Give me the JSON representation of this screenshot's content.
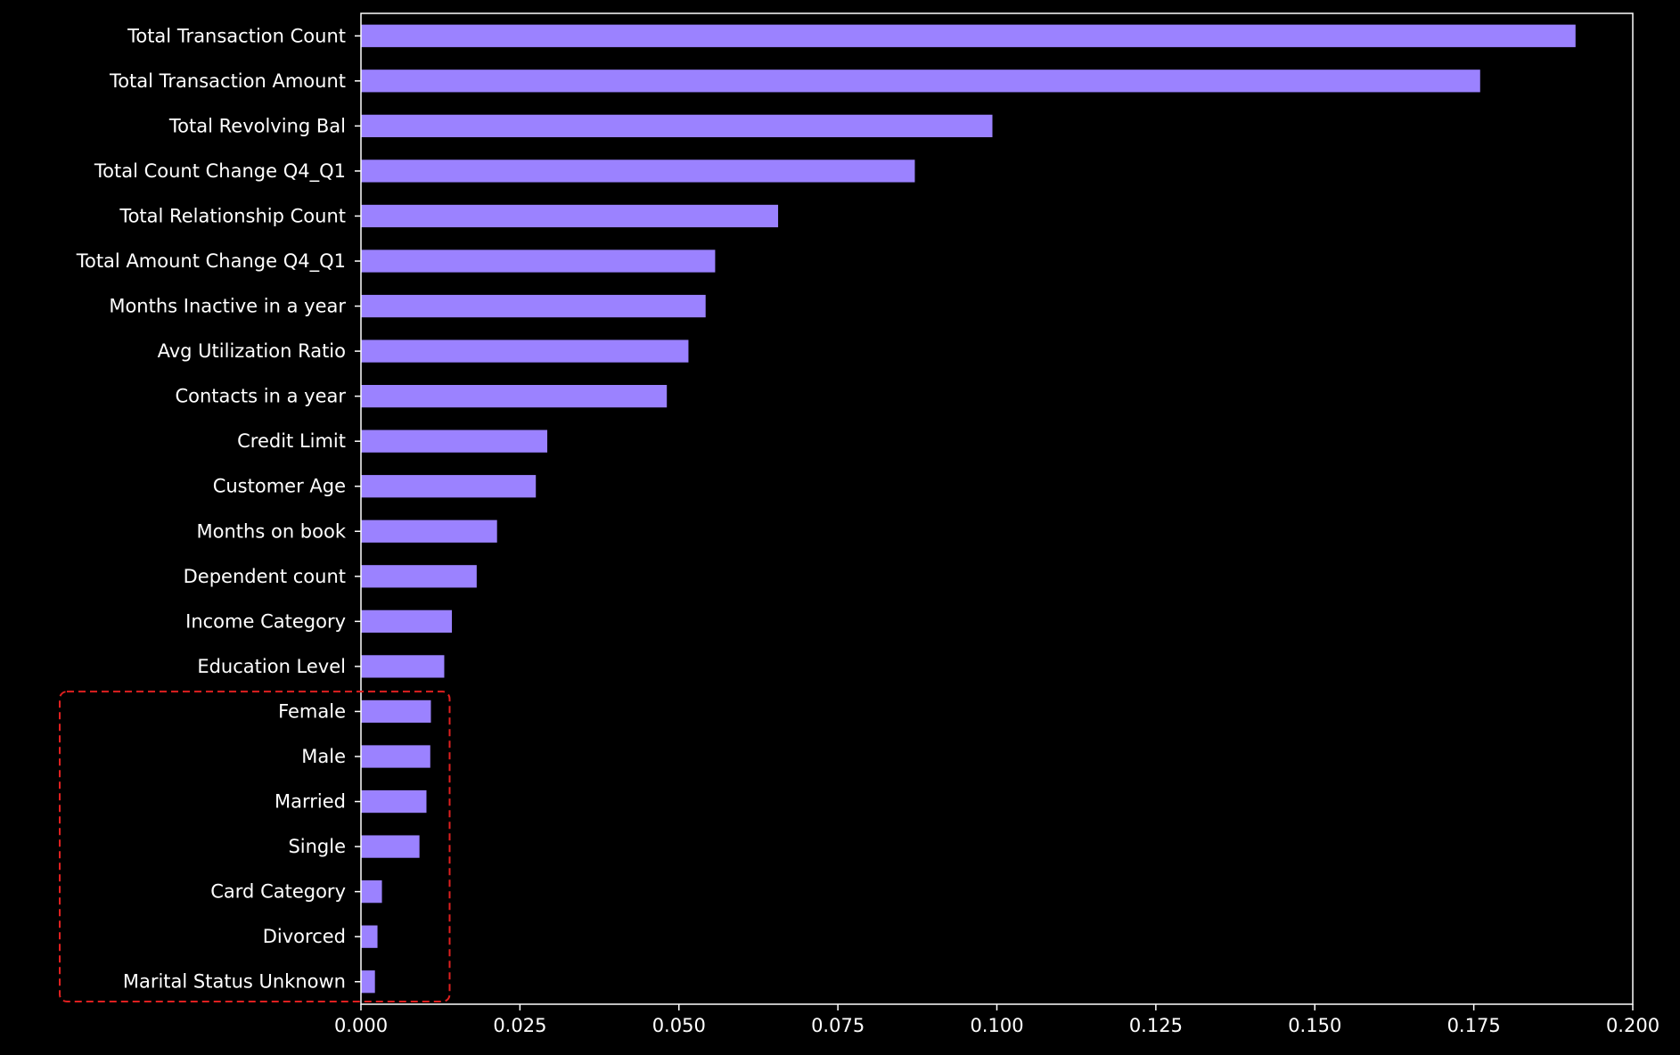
{
  "chart_data": {
    "type": "bar",
    "orientation": "horizontal",
    "title": "",
    "xlabel": "",
    "ylabel": "",
    "xlim": [
      0,
      0.2
    ],
    "grid": false,
    "categories": [
      "Total Transaction Count",
      "Total Transaction Amount",
      "Total Revolving Bal",
      "Total Count Change Q4_Q1",
      "Total Relationship Count",
      "Total Amount Change Q4_Q1",
      "Months Inactive in a year",
      "Avg Utilization Ratio",
      "Contacts in a year",
      "Credit Limit",
      "Customer Age",
      "Months on book",
      "Dependent count",
      "Income Category",
      "Education Level",
      "Female",
      "Male",
      "Married",
      "Single",
      "Card Category",
      "Divorced",
      "Marital Status Unknown"
    ],
    "values": [
      0.191,
      0.176,
      0.0993,
      0.0871,
      0.0656,
      0.0557,
      0.0542,
      0.0515,
      0.0481,
      0.0293,
      0.0275,
      0.0214,
      0.0182,
      0.0143,
      0.0131,
      0.011,
      0.0109,
      0.0103,
      0.0092,
      0.0033,
      0.0026,
      0.0022
    ],
    "x_ticks": [
      "0.000",
      "0.025",
      "0.050",
      "0.075",
      "0.100",
      "0.125",
      "0.150",
      "0.175",
      "0.200"
    ],
    "x_tick_values": [
      0,
      0.025,
      0.05,
      0.075,
      0.1,
      0.125,
      0.15,
      0.175,
      0.2
    ],
    "highlight": {
      "style": "dashed-box",
      "categories": [
        "Female",
        "Male",
        "Married",
        "Single",
        "Card Category",
        "Divorced",
        "Marital Status Unknown"
      ]
    },
    "colors": {
      "bar": "#9b82ff",
      "background": "#000000",
      "axes": "#ffffff",
      "highlight": "#e02020"
    }
  }
}
